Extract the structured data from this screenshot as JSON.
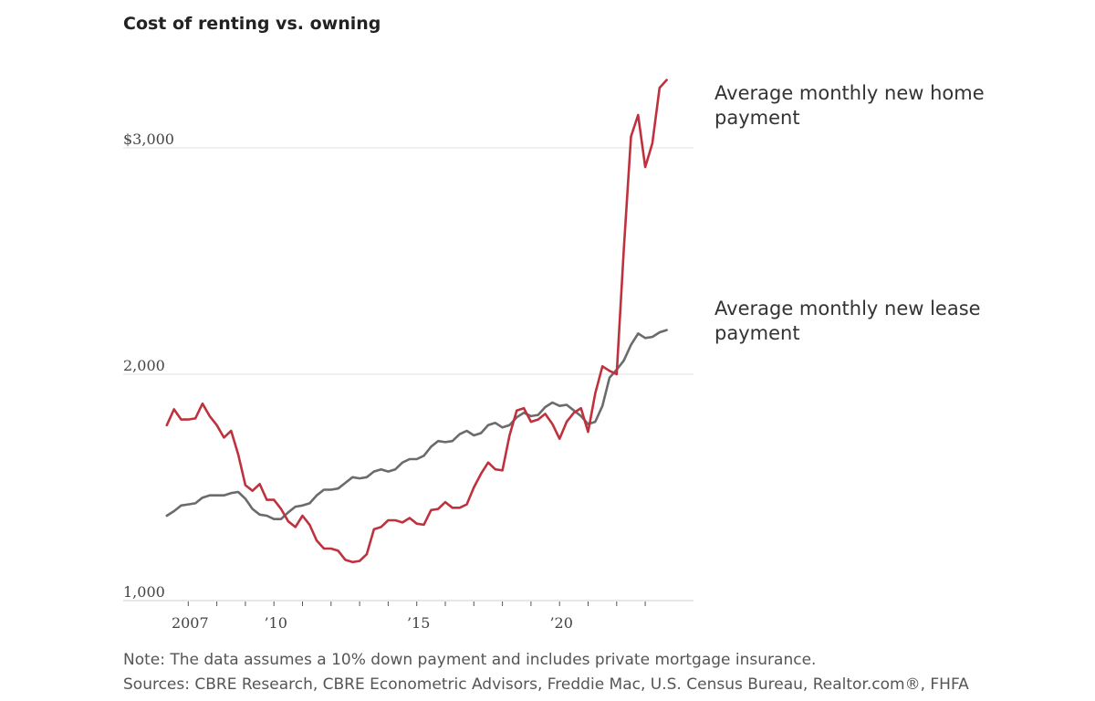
{
  "chart_data": {
    "type": "line",
    "title": "Cost of renting vs. owning",
    "xlabel": "",
    "ylabel": "",
    "ylim": [
      1000,
      3300
    ],
    "y_ticks": [
      {
        "value": 3000,
        "label": "$3,000"
      },
      {
        "value": 2000,
        "label": "2,000"
      },
      {
        "value": 1000,
        "label": "1,000"
      }
    ],
    "x_range": [
      2006,
      2024
    ],
    "x_ticks": [
      {
        "value": 2007,
        "label": "2007"
      },
      {
        "value": 2010,
        "label": "’10"
      },
      {
        "value": 2015,
        "label": "’15"
      },
      {
        "value": 2020,
        "label": "’20"
      }
    ],
    "minor_tick_years": [
      2007,
      2008,
      2009,
      2010,
      2011,
      2012,
      2013,
      2014,
      2015,
      2016,
      2017,
      2018,
      2019,
      2020,
      2021,
      2022,
      2023
    ],
    "grid": true,
    "series": [
      {
        "name": "Average monthly new home payment",
        "name_lines": [
          "Average monthly new home",
          "payment"
        ],
        "color": "#c0313e",
        "points": [
          [
            2006.25,
            1775
          ],
          [
            2006.5,
            1845
          ],
          [
            2006.75,
            1800
          ],
          [
            2007.0,
            1800
          ],
          [
            2007.25,
            1805
          ],
          [
            2007.5,
            1870
          ],
          [
            2007.75,
            1815
          ],
          [
            2008.0,
            1775
          ],
          [
            2008.25,
            1720
          ],
          [
            2008.5,
            1750
          ],
          [
            2008.75,
            1645
          ],
          [
            2009.0,
            1510
          ],
          [
            2009.25,
            1485
          ],
          [
            2009.5,
            1515
          ],
          [
            2009.75,
            1445
          ],
          [
            2010.0,
            1445
          ],
          [
            2010.25,
            1405
          ],
          [
            2010.5,
            1350
          ],
          [
            2010.75,
            1325
          ],
          [
            2011.0,
            1375
          ],
          [
            2011.25,
            1335
          ],
          [
            2011.5,
            1265
          ],
          [
            2011.75,
            1230
          ],
          [
            2012.0,
            1230
          ],
          [
            2012.25,
            1220
          ],
          [
            2012.5,
            1180
          ],
          [
            2012.75,
            1170
          ],
          [
            2013.0,
            1175
          ],
          [
            2013.25,
            1205
          ],
          [
            2013.5,
            1315
          ],
          [
            2013.75,
            1325
          ],
          [
            2014.0,
            1355
          ],
          [
            2014.25,
            1355
          ],
          [
            2014.5,
            1345
          ],
          [
            2014.75,
            1365
          ],
          [
            2015.0,
            1340
          ],
          [
            2015.25,
            1335
          ],
          [
            2015.5,
            1400
          ],
          [
            2015.75,
            1405
          ],
          [
            2016.0,
            1435
          ],
          [
            2016.25,
            1410
          ],
          [
            2016.5,
            1410
          ],
          [
            2016.75,
            1425
          ],
          [
            2017.0,
            1500
          ],
          [
            2017.25,
            1560
          ],
          [
            2017.5,
            1610
          ],
          [
            2017.75,
            1580
          ],
          [
            2018.0,
            1575
          ],
          [
            2018.25,
            1730
          ],
          [
            2018.5,
            1840
          ],
          [
            2018.75,
            1850
          ],
          [
            2019.0,
            1790
          ],
          [
            2019.25,
            1800
          ],
          [
            2019.5,
            1825
          ],
          [
            2019.75,
            1780
          ],
          [
            2020.0,
            1715
          ],
          [
            2020.25,
            1790
          ],
          [
            2020.5,
            1830
          ],
          [
            2020.75,
            1850
          ],
          [
            2021.0,
            1745
          ],
          [
            2021.25,
            1915
          ],
          [
            2021.5,
            2035
          ],
          [
            2021.75,
            2015
          ],
          [
            2022.0,
            2000
          ],
          [
            2022.25,
            2550
          ],
          [
            2022.5,
            3050
          ],
          [
            2022.75,
            3145
          ],
          [
            2023.0,
            2915
          ],
          [
            2023.25,
            3020
          ],
          [
            2023.5,
            3265
          ],
          [
            2023.75,
            3300
          ]
        ]
      },
      {
        "name": "Average monthly new lease payment",
        "name_lines": [
          "Average monthly new lease",
          "payment"
        ],
        "color": "#6b6b6b",
        "points": [
          [
            2006.25,
            1375
          ],
          [
            2006.5,
            1395
          ],
          [
            2006.75,
            1420
          ],
          [
            2007.0,
            1425
          ],
          [
            2007.25,
            1430
          ],
          [
            2007.5,
            1455
          ],
          [
            2007.75,
            1465
          ],
          [
            2008.0,
            1465
          ],
          [
            2008.25,
            1465
          ],
          [
            2008.5,
            1475
          ],
          [
            2008.75,
            1480
          ],
          [
            2009.0,
            1450
          ],
          [
            2009.25,
            1405
          ],
          [
            2009.5,
            1380
          ],
          [
            2009.75,
            1375
          ],
          [
            2010.0,
            1360
          ],
          [
            2010.25,
            1360
          ],
          [
            2010.5,
            1390
          ],
          [
            2010.75,
            1415
          ],
          [
            2011.0,
            1420
          ],
          [
            2011.25,
            1430
          ],
          [
            2011.5,
            1465
          ],
          [
            2011.75,
            1490
          ],
          [
            2012.0,
            1490
          ],
          [
            2012.25,
            1495
          ],
          [
            2012.5,
            1520
          ],
          [
            2012.75,
            1545
          ],
          [
            2013.0,
            1540
          ],
          [
            2013.25,
            1545
          ],
          [
            2013.5,
            1570
          ],
          [
            2013.75,
            1580
          ],
          [
            2014.0,
            1570
          ],
          [
            2014.25,
            1580
          ],
          [
            2014.5,
            1610
          ],
          [
            2014.75,
            1625
          ],
          [
            2015.0,
            1625
          ],
          [
            2015.25,
            1640
          ],
          [
            2015.5,
            1680
          ],
          [
            2015.75,
            1705
          ],
          [
            2016.0,
            1700
          ],
          [
            2016.25,
            1705
          ],
          [
            2016.5,
            1735
          ],
          [
            2016.75,
            1750
          ],
          [
            2017.0,
            1730
          ],
          [
            2017.25,
            1740
          ],
          [
            2017.5,
            1775
          ],
          [
            2017.75,
            1785
          ],
          [
            2018.0,
            1765
          ],
          [
            2018.25,
            1775
          ],
          [
            2018.5,
            1810
          ],
          [
            2018.75,
            1830
          ],
          [
            2019.0,
            1815
          ],
          [
            2019.25,
            1820
          ],
          [
            2019.5,
            1855
          ],
          [
            2019.75,
            1875
          ],
          [
            2020.0,
            1860
          ],
          [
            2020.25,
            1865
          ],
          [
            2020.5,
            1840
          ],
          [
            2020.75,
            1815
          ],
          [
            2021.0,
            1780
          ],
          [
            2021.25,
            1790
          ],
          [
            2021.5,
            1860
          ],
          [
            2021.75,
            1985
          ],
          [
            2022.0,
            2020
          ],
          [
            2022.25,
            2060
          ],
          [
            2022.5,
            2130
          ],
          [
            2022.75,
            2180
          ],
          [
            2023.0,
            2160
          ],
          [
            2023.25,
            2165
          ],
          [
            2023.5,
            2185
          ],
          [
            2023.75,
            2195
          ]
        ]
      }
    ],
    "notes": [
      "Note: The data assumes a 10% down payment and includes private mortgage insurance.",
      "Sources: CBRE Research, CBRE Econometric Advisors, Freddie Mac, U.S. Census Bureau, Realtor.com®, FHFA"
    ]
  }
}
